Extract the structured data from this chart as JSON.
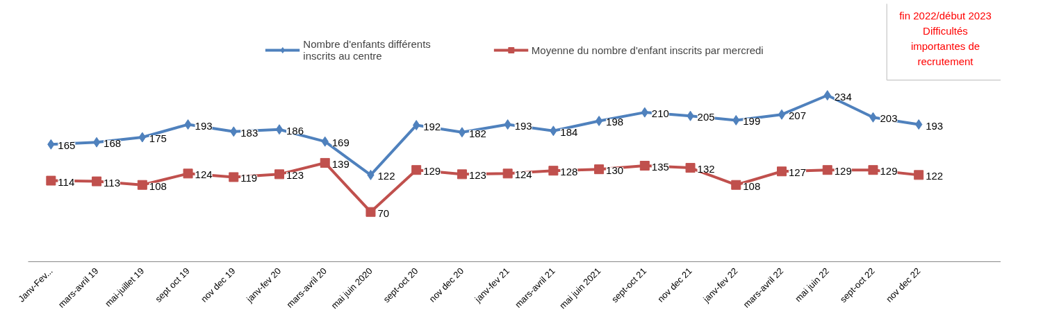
{
  "chart_data": {
    "type": "line",
    "categories": [
      "Janv-Fev...",
      "mars-avril 19",
      "mai-juillet 19",
      "sept oct 19",
      "nov dec 19",
      "janv-fev 20",
      "mars-avril 20",
      "mai juin 2020",
      "sept-oct 20",
      "nov dec 20",
      "janv-fev 21",
      "mars-avril 21",
      "mai juin 2021",
      "sept-oct 21",
      "nov dec 21",
      "janv-fev 22",
      "mars-avril 22",
      "mai juin 22",
      "sept-oct 22",
      "nov dec 22"
    ],
    "series": [
      {
        "name": "Nombre d'enfants différents\ninscrits au centre",
        "color": "#4f81bd",
        "marker": "diamond",
        "values": [
          165,
          168,
          175,
          193,
          183,
          186,
          169,
          122,
          192,
          182,
          193,
          184,
          198,
          210,
          205,
          199,
          207,
          234,
          203,
          193
        ]
      },
      {
        "name": "Moyenne du nombre d'enfant inscrits par mercredi",
        "color": "#c0504d",
        "marker": "square",
        "values": [
          114,
          113,
          108,
          124,
          119,
          123,
          139,
          70,
          129,
          123,
          124,
          128,
          130,
          135,
          132,
          108,
          127,
          129,
          129,
          122
        ]
      }
    ],
    "annotations": [
      "fin 2022/début 2023\nDifficultés\nimportantes de\nrecrutement"
    ],
    "data_labels": true,
    "legend": "top",
    "grid": false,
    "line_style": "solid"
  }
}
